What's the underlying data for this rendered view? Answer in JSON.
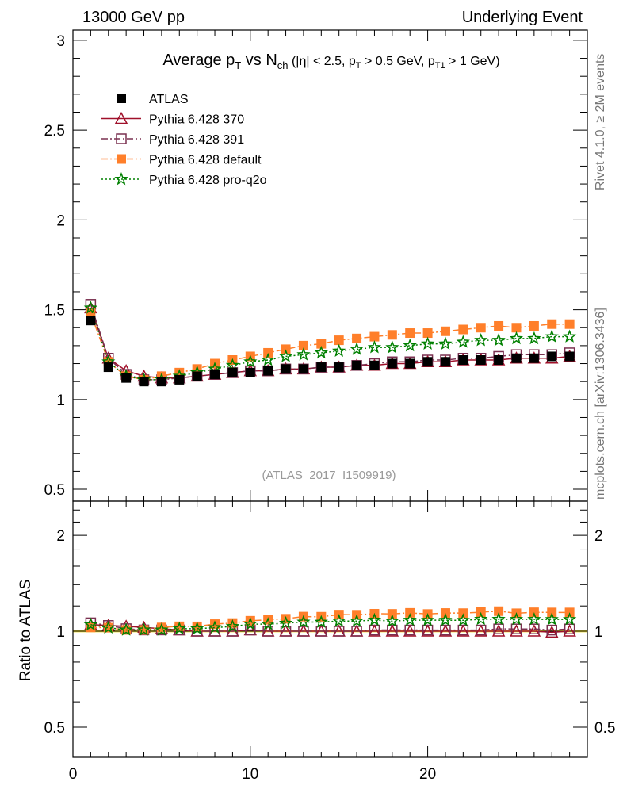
{
  "header": {
    "left": "13000 GeV pp",
    "right": "Underlying Event"
  },
  "side_labels": {
    "rivet": "Rivet 4.1.0, ≥ 2M events",
    "mcplots": "mcplots.cern.ch [arXiv:1306.3436]"
  },
  "title_parts": {
    "a": "Average p",
    "b": "T",
    "c": " vs N",
    "d": "ch",
    "e": " (|η| < 2.5, p",
    "f": "T",
    "g": " > 0.5 GeV, p",
    "h": "T1",
    "i": " > 1 GeV)"
  },
  "chart_data": {
    "type": "scatter",
    "analysis": "(ATLAS_2017_I1509919)",
    "xlim": [
      0,
      29
    ],
    "ylim": [
      0.434,
      3.057
    ],
    "ratio_ylim": [
      0.402,
      2.56
    ],
    "ratio_ylabel": "Ratio to ATLAS",
    "xticks": [
      "0",
      "10",
      "20"
    ],
    "yticks": [
      "0.5",
      "1",
      "1.5",
      "2",
      "2.5",
      "3"
    ],
    "ratio_yticks": [
      "0.5",
      "1",
      "2"
    ],
    "x": [
      1,
      2,
      3,
      4,
      5,
      6,
      7,
      8,
      9,
      10,
      11,
      12,
      13,
      14,
      15,
      16,
      17,
      18,
      19,
      20,
      21,
      22,
      23,
      24,
      25,
      26,
      27,
      28
    ],
    "series": [
      {
        "name": "ATLAS",
        "color": "#000000",
        "marker": "square-filled",
        "line": "none",
        "values": [
          1.44,
          1.18,
          1.12,
          1.1,
          1.1,
          1.11,
          1.13,
          1.14,
          1.15,
          1.15,
          1.16,
          1.17,
          1.17,
          1.18,
          1.18,
          1.19,
          1.19,
          1.2,
          1.2,
          1.21,
          1.21,
          1.22,
          1.22,
          1.22,
          1.23,
          1.23,
          1.24,
          1.24
        ]
      },
      {
        "name": "Pythia 6.428 370",
        "color": "#a0102a",
        "marker": "triangle-open",
        "line": "solid",
        "values": [
          1.51,
          1.23,
          1.16,
          1.13,
          1.12,
          1.12,
          1.13,
          1.14,
          1.15,
          1.16,
          1.16,
          1.17,
          1.17,
          1.18,
          1.18,
          1.19,
          1.19,
          1.2,
          1.2,
          1.21,
          1.21,
          1.22,
          1.22,
          1.22,
          1.23,
          1.23,
          1.23,
          1.24
        ]
      },
      {
        "name": "Pythia 6.428 391",
        "color": "#7a3050",
        "marker": "square-open",
        "line": "dashdot",
        "values": [
          1.53,
          1.23,
          1.14,
          1.11,
          1.11,
          1.12,
          1.13,
          1.14,
          1.15,
          1.16,
          1.16,
          1.17,
          1.17,
          1.18,
          1.18,
          1.19,
          1.2,
          1.21,
          1.21,
          1.22,
          1.22,
          1.23,
          1.23,
          1.24,
          1.25,
          1.25,
          1.25,
          1.26
        ]
      },
      {
        "name": "Pythia 6.428 default",
        "color": "#ff7f2a",
        "marker": "square-filled",
        "line": "dashdot",
        "values": [
          1.48,
          1.21,
          1.13,
          1.11,
          1.13,
          1.15,
          1.17,
          1.2,
          1.22,
          1.24,
          1.26,
          1.28,
          1.3,
          1.31,
          1.33,
          1.34,
          1.35,
          1.36,
          1.37,
          1.37,
          1.38,
          1.39,
          1.4,
          1.41,
          1.4,
          1.41,
          1.42,
          1.42
        ]
      },
      {
        "name": "Pythia 6.428 pro-q2o",
        "color": "#008000",
        "marker": "star",
        "line": "dotted",
        "values": [
          1.51,
          1.21,
          1.13,
          1.11,
          1.11,
          1.13,
          1.15,
          1.17,
          1.19,
          1.21,
          1.22,
          1.24,
          1.25,
          1.26,
          1.27,
          1.28,
          1.29,
          1.29,
          1.3,
          1.31,
          1.31,
          1.32,
          1.33,
          1.33,
          1.34,
          1.34,
          1.35,
          1.35
        ]
      }
    ]
  }
}
